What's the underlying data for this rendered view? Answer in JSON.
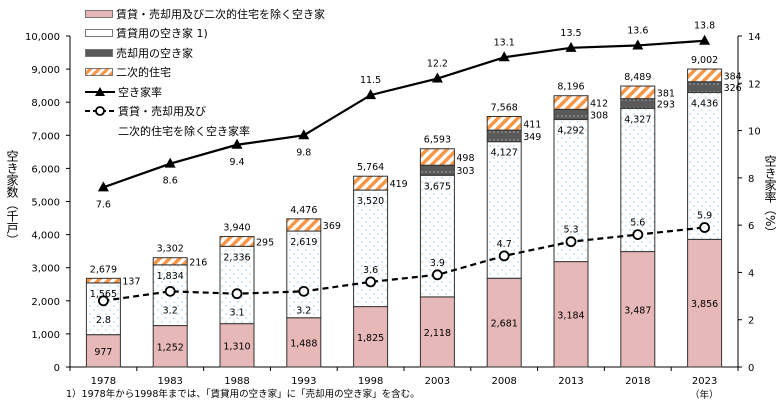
{
  "chart_data": {
    "type": "bar",
    "stacked": true,
    "categories": [
      "1978",
      "1983",
      "1988",
      "1993",
      "1998",
      "2003",
      "2008",
      "2013",
      "2018",
      "2023"
    ],
    "series": [
      {
        "name": "賃貸・売却用及び二次的住宅を除く空き家",
        "type": "bar",
        "color": "#e6b8b7",
        "values": [
          977,
          1252,
          1310,
          1488,
          1825,
          2118,
          2681,
          3184,
          3487,
          3856
        ]
      },
      {
        "name": "賃貸用の空き家 1)",
        "type": "bar",
        "color": "#ffffff",
        "values": [
          1565,
          1834,
          2336,
          2619,
          3520,
          3675,
          4127,
          4292,
          4327,
          4436
        ]
      },
      {
        "name": "売却用の空き家",
        "type": "bar",
        "color": "#595959",
        "values": [
          null,
          null,
          null,
          null,
          null,
          303,
          349,
          308,
          293,
          326
        ]
      },
      {
        "name": "二次的住宅",
        "type": "bar",
        "color": "#f79646",
        "values": [
          137,
          216,
          295,
          369,
          419,
          498,
          411,
          412,
          381,
          384
        ]
      },
      {
        "name": "空き家率",
        "type": "line",
        "axis": "right",
        "values": [
          7.6,
          8.6,
          9.4,
          9.8,
          11.5,
          12.2,
          13.1,
          13.5,
          13.6,
          13.8
        ]
      },
      {
        "name": "賃貸・売却用及び二次的住宅を除く空き家率",
        "type": "line",
        "dashed": true,
        "axis": "right",
        "values": [
          2.8,
          3.2,
          3.1,
          3.2,
          3.6,
          3.9,
          4.7,
          5.3,
          5.6,
          5.9
        ]
      }
    ],
    "totals": [
      "2,679",
      "3,302",
      "3,940",
      "4,476",
      "5,764",
      "6,593",
      "7,568",
      "8,196",
      "8,489",
      "9,002"
    ],
    "ylabel": "空き家数（千戸）",
    "y2label": "空き家率（%）",
    "xunit": "（年）",
    "ylim": [
      0,
      10000
    ],
    "y2lim": [
      0,
      14
    ],
    "yticks": [
      "0",
      "1,000",
      "2,000",
      "3,000",
      "4,000",
      "5,000",
      "6,000",
      "7,000",
      "8,000",
      "9,000",
      "10,000"
    ],
    "y2ticks": [
      "0",
      "2",
      "4",
      "6",
      "8",
      "10",
      "12",
      "14"
    ],
    "legend_position": "top-left",
    "legend_lines": {
      "dashed_line_1": "賃貸・売却用及び",
      "dashed_line_2": "二次的住宅を除く空き家率"
    },
    "footnote": "1）1978年から1998年までは、「賃貸用の空き家」に「売却用の空き家」を含む。"
  }
}
